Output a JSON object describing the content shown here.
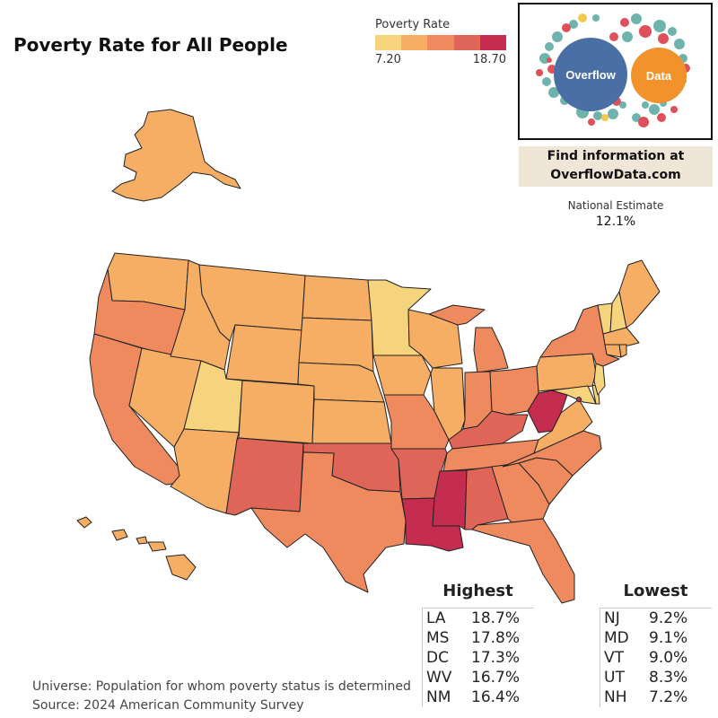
{
  "title": "Poverty Rate for All People",
  "legend": {
    "title": "Poverty Rate",
    "min_label": "7.20",
    "max_label": "18.70",
    "colors": [
      "#f6d47e",
      "#f6ae64",
      "#ef8a5f",
      "#de6557",
      "#c42d4f"
    ]
  },
  "logo": {
    "left_text": "Overflow",
    "right_text": "Data",
    "left_color": "#4a6fa5",
    "right_color": "#f2922a"
  },
  "info": {
    "line1": "Find information at",
    "line2": "OverflowData.com"
  },
  "national": {
    "label": "National Estimate",
    "value": "12.1%"
  },
  "highest": {
    "title": "Highest",
    "rows": [
      {
        "state": "LA",
        "value": "18.7%"
      },
      {
        "state": "MS",
        "value": "17.8%"
      },
      {
        "state": "DC",
        "value": "17.3%"
      },
      {
        "state": "WV",
        "value": "16.7%"
      },
      {
        "state": "NM",
        "value": "16.4%"
      }
    ]
  },
  "lowest": {
    "title": "Lowest",
    "rows": [
      {
        "state": "NJ",
        "value": "9.2%"
      },
      {
        "state": "MD",
        "value": "9.1%"
      },
      {
        "state": "VT",
        "value": "9.0%"
      },
      {
        "state": "UT",
        "value": "8.3%"
      },
      {
        "state": "NH",
        "value": "7.2%"
      }
    ]
  },
  "footer": {
    "universe": "Universe: Population for whom poverty status is determined",
    "source": "Source: 2024 American Community Survey"
  }
}
